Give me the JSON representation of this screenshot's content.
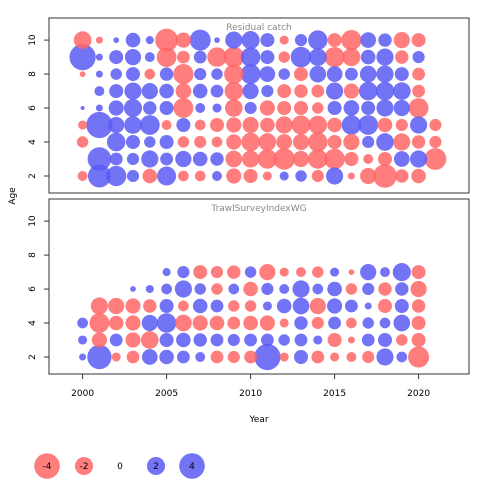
{
  "colors": {
    "positive": "#5b5bf5",
    "negative": "#ff6666",
    "frame": "#333333",
    "panel_title": "#888888"
  },
  "chart_data": [
    {
      "type": "scatter",
      "subtype": "bubble",
      "title": "Residual catch",
      "xlabel": "Year",
      "ylabel": "Age",
      "xlim": [
        1998,
        2023
      ],
      "ylim": [
        1,
        11.3
      ],
      "xticks": [
        2000,
        2005,
        2010,
        2015,
        2020
      ],
      "yticks": [
        2,
        4,
        6,
        8,
        10
      ],
      "x": [
        2000,
        2001,
        2002,
        2003,
        2004,
        2005,
        2006,
        2007,
        2008,
        2009,
        2010,
        2011,
        2012,
        2013,
        2014,
        2015,
        2016,
        2017,
        2018,
        2019,
        2020,
        2021
      ],
      "y": [
        2,
        3,
        4,
        5,
        6,
        7,
        8,
        9,
        10
      ],
      "values": [
        [
          -0.6,
          3.2,
          2.5,
          0.9,
          -1.3,
          2.2,
          -0.7,
          -0.7,
          0.6,
          -1.4,
          -1.2,
          -0.5,
          0.5,
          0.8,
          -0.9,
          1.8,
          -0.3,
          -1.6,
          -3.4,
          -1.1,
          -1.3,
          0
        ],
        [
          0,
          3.4,
          1.0,
          0.9,
          1.8,
          1.0,
          1.6,
          1.3,
          1.1,
          -1.7,
          -1.8,
          -2.3,
          -2.8,
          -1.6,
          -2.3,
          -2.6,
          -1.2,
          -0.6,
          -1.2,
          1.5,
          1.8,
          -2.9
        ],
        [
          -0.8,
          0,
          2.1,
          1.2,
          0.8,
          1.2,
          -0.8,
          -0.9,
          -0.7,
          -1.4,
          -2.1,
          -1.9,
          -1.5,
          -1.6,
          -2.3,
          -1.2,
          -1.6,
          0.9,
          1.9,
          -1.8,
          -1.1,
          -0.9
        ],
        [
          -0.5,
          4.2,
          1.6,
          1.9,
          2.4,
          -0.6,
          1.2,
          -0.7,
          -1.2,
          -1.4,
          -1.6,
          -1.3,
          -1.8,
          -2.2,
          -2.1,
          -1.3,
          2.3,
          2.4,
          -1.3,
          -0.9,
          1.8,
          -0.9
        ],
        [
          0.1,
          0.3,
          1.4,
          2.0,
          1.1,
          1.2,
          -2.4,
          0.6,
          0.5,
          -1.9,
          0.9,
          -1.4,
          -1.2,
          -1.2,
          -0.8,
          1.2,
          1.5,
          1.2,
          1.8,
          1.6,
          -2.4,
          0
        ],
        [
          0,
          0.6,
          1.2,
          1.8,
          1.6,
          1.3,
          -1.5,
          1.3,
          1.0,
          -2.1,
          1.6,
          0.9,
          -1.2,
          -1.1,
          -1.0,
          1.8,
          -1.4,
          2.1,
          2.1,
          1.9,
          -1.0,
          0
        ],
        [
          -0.2,
          0.3,
          0.8,
          1.2,
          -0.7,
          1.1,
          -2.5,
          0.9,
          0.8,
          -2.3,
          2.4,
          1.5,
          0.8,
          -1.2,
          1.7,
          1.5,
          1.0,
          1.7,
          1.8,
          1.2,
          -1.0,
          0
        ],
        [
          4.2,
          0.3,
          1.2,
          1.6,
          0.6,
          -2.4,
          -1.0,
          1.0,
          -2.3,
          -2.6,
          2.3,
          1.2,
          -0.8,
          2.6,
          1.9,
          -2.5,
          -2.0,
          1.3,
          1.8,
          -1.1,
          0.9,
          0
        ],
        [
          -1.9,
          -0.3,
          0.2,
          1.3,
          0.4,
          -3.2,
          -1.4,
          2.7,
          0.2,
          1.8,
          2.0,
          1.2,
          -0.5,
          0.9,
          2.3,
          -1.2,
          -2.5,
          1.5,
          1.1,
          -1.6,
          -1.2,
          0
        ]
      ]
    },
    {
      "type": "scatter",
      "subtype": "bubble",
      "title": "TrawlSurveyIndexWG",
      "xlabel": "Year",
      "ylabel": "Age",
      "xlim": [
        1998,
        2023
      ],
      "ylim": [
        1,
        11.3
      ],
      "xticks": [
        2000,
        2005,
        2010,
        2015,
        2020
      ],
      "yticks": [
        2,
        4,
        6,
        8,
        10
      ],
      "x": [
        2000,
        2001,
        2002,
        2003,
        2004,
        2005,
        2006,
        2007,
        2008,
        2009,
        2010,
        2011,
        2012,
        2013,
        2014,
        2015,
        2016,
        2017,
        2018,
        2019,
        2020
      ],
      "y": [
        2,
        3,
        4,
        5,
        6,
        7
      ],
      "values": [
        [
          0.3,
          3.6,
          -0.5,
          -1.0,
          1.5,
          1.3,
          1.0,
          0.6,
          -1.0,
          -0.9,
          -1.0,
          4.2,
          -0.5,
          1.2,
          -1.0,
          -0.5,
          -0.6,
          -0.9,
          1.8,
          0.7,
          -2.7
        ],
        [
          0.5,
          -1.4,
          1.0,
          -1.4,
          -1.9,
          1.2,
          1.3,
          1.1,
          1.0,
          0.9,
          1.0,
          1.0,
          0.8,
          1.0,
          0.5,
          -1.2,
          -0.3,
          1.0,
          1.2,
          -0.8,
          -1.2
        ],
        [
          0.7,
          -2.4,
          -1.3,
          -1.4,
          1.6,
          2.3,
          -1.7,
          -1.4,
          -1.3,
          -1.0,
          -1.3,
          -1.4,
          -0.5,
          1.1,
          -0.9,
          1.0,
          -0.7,
          0.8,
          0.7,
          1.7,
          -1.2
        ],
        [
          0,
          -1.8,
          -1.6,
          -1.4,
          -1.1,
          1.2,
          -0.7,
          1.3,
          1.0,
          -0.8,
          -0.8,
          0.5,
          1.3,
          1.7,
          -1.6,
          1.4,
          1.0,
          0.3,
          -1.2,
          1.2,
          -1.1
        ],
        [
          0,
          0,
          0,
          0.2,
          0.4,
          0.7,
          1.8,
          0.8,
          -0.8,
          0.7,
          -1.3,
          0.9,
          0.6,
          1.8,
          0.7,
          1.3,
          -0.8,
          0.9,
          -1.1,
          1.1,
          -1.6
        ],
        [
          0,
          0,
          0,
          0,
          0,
          0.4,
          0.9,
          -1.2,
          -0.9,
          -1.1,
          0.8,
          -1.6,
          -0.5,
          -0.6,
          -0.8,
          0.5,
          -0.2,
          1.6,
          0.6,
          2.0,
          -1.2
        ]
      ]
    }
  ],
  "legend": {
    "items": [
      {
        "label": "-4",
        "value": -4
      },
      {
        "label": "-2",
        "value": -2
      },
      {
        "label": "0",
        "value": 0
      },
      {
        "label": "2",
        "value": 2
      },
      {
        "label": "4",
        "value": 4
      }
    ]
  }
}
